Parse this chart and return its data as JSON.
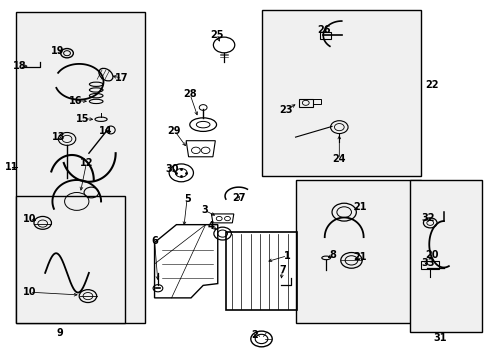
{
  "background_color": "#ffffff",
  "box_fill": "#f0f0f0",
  "line_color": "#000000",
  "label_fs": 7,
  "boxes": {
    "b11": [
      0.03,
      0.1,
      0.295,
      0.97
    ],
    "b9": [
      0.03,
      0.1,
      0.225,
      0.465
    ],
    "b22": [
      0.535,
      0.505,
      0.865,
      0.975
    ],
    "b20": [
      0.605,
      0.095,
      0.865,
      0.505
    ],
    "b31": [
      0.84,
      0.075,
      0.985,
      0.505
    ]
  },
  "labels": {
    "1": [
      0.582,
      0.285,
      "←"
    ],
    "2": [
      0.518,
      0.055,
      "←"
    ],
    "3": [
      0.415,
      0.395,
      "→"
    ],
    "4": [
      0.438,
      0.355,
      "→"
    ],
    "5": [
      0.388,
      0.435,
      "↓"
    ],
    "6": [
      0.318,
      0.32,
      "↓"
    ],
    "7": [
      0.575,
      0.245,
      "←"
    ],
    "8": [
      0.68,
      0.28,
      "←"
    ],
    "9": [
      0.12,
      0.075,
      ""
    ],
    "10a": [
      0.058,
      0.19,
      "→"
    ],
    "10b": [
      0.058,
      0.38,
      "→"
    ],
    "11": [
      0.012,
      0.535,
      "–"
    ],
    "12": [
      0.175,
      0.545,
      "↑"
    ],
    "13": [
      0.12,
      0.455,
      "→"
    ],
    "14": [
      0.21,
      0.455,
      "↑"
    ],
    "15": [
      0.178,
      0.628,
      "→"
    ],
    "16": [
      0.155,
      0.69,
      "→"
    ],
    "17": [
      0.245,
      0.78,
      "←"
    ],
    "18": [
      0.035,
      0.81,
      ""
    ],
    "19": [
      0.115,
      0.845,
      "→"
    ],
    "20": [
      0.87,
      0.29,
      "–"
    ],
    "21a": [
      0.738,
      0.165,
      "←"
    ],
    "21b": [
      0.738,
      0.32,
      "←"
    ],
    "22": [
      0.87,
      0.765,
      "–"
    ],
    "23": [
      0.588,
      0.685,
      "→"
    ],
    "24": [
      0.695,
      0.555,
      "↑"
    ],
    "25": [
      0.445,
      0.895,
      "↓"
    ],
    "26": [
      0.665,
      0.915,
      "←"
    ],
    "27": [
      0.49,
      0.44,
      "↑"
    ],
    "28": [
      0.39,
      0.735,
      "↓"
    ],
    "29": [
      0.358,
      0.635,
      "→"
    ],
    "30": [
      0.355,
      0.52,
      "→"
    ],
    "31": [
      0.9,
      0.065,
      ""
    ],
    "32": [
      0.877,
      0.37,
      "←"
    ],
    "33": [
      0.877,
      0.255,
      "←"
    ]
  }
}
